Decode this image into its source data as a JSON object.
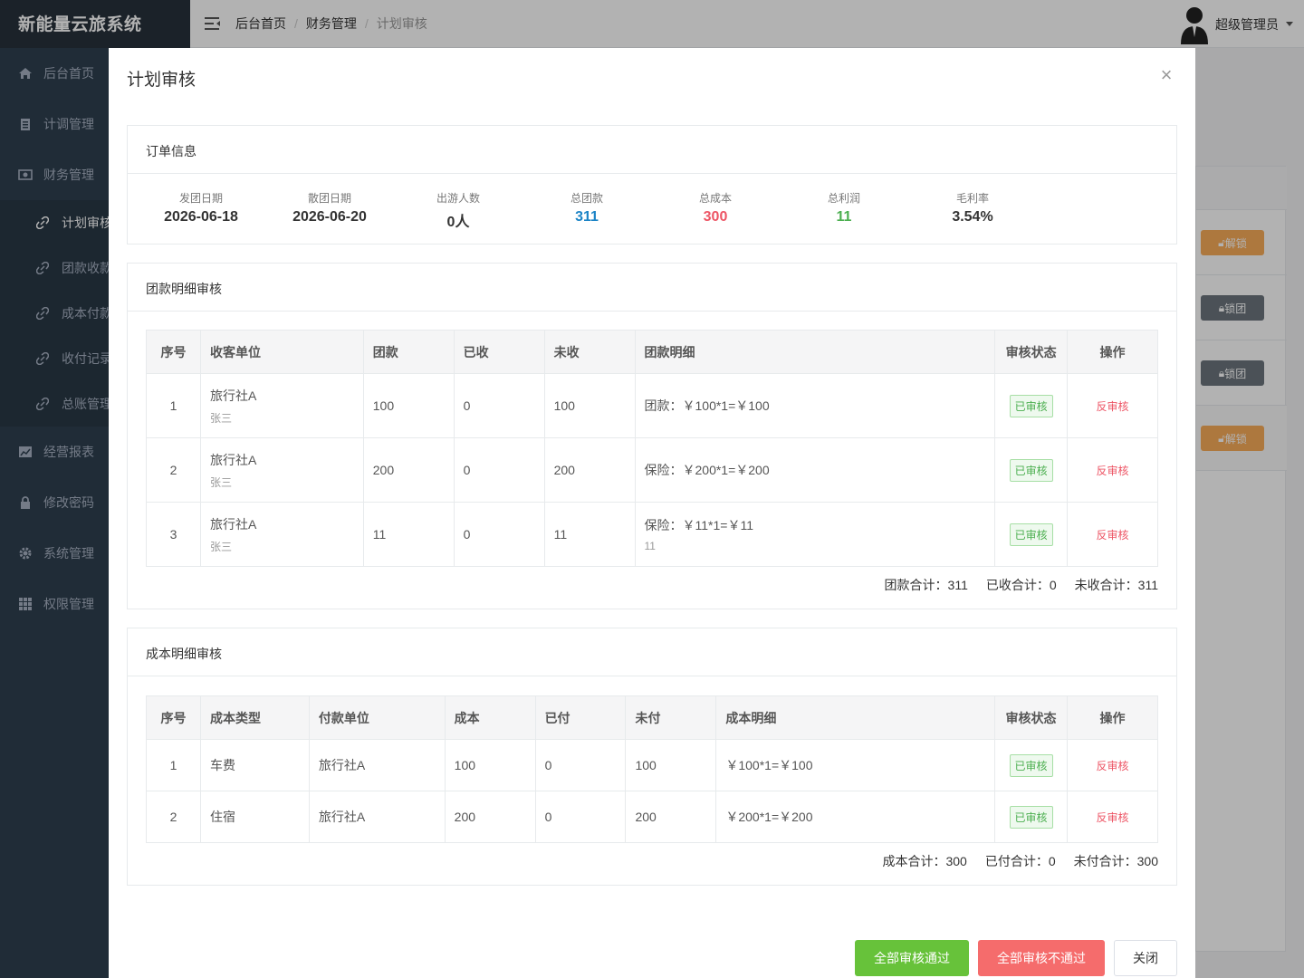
{
  "app": {
    "title": "新能量云旅系统"
  },
  "sidebar": {
    "items": [
      {
        "label": "后台首页",
        "icon": "home-icon"
      },
      {
        "label": "计调管理",
        "icon": "clipboard-icon"
      },
      {
        "label": "财务管理",
        "icon": "money-icon"
      },
      {
        "label": "经营报表",
        "icon": "chart-icon"
      },
      {
        "label": "修改密码",
        "icon": "lock-icon"
      },
      {
        "label": "系统管理",
        "icon": "gear-icon"
      },
      {
        "label": "权限管理",
        "icon": "grid-icon"
      }
    ],
    "sub_items": [
      {
        "label": "计划审核"
      },
      {
        "label": "团款收款"
      },
      {
        "label": "成本付款"
      },
      {
        "label": "收付记录"
      },
      {
        "label": "总账管理"
      }
    ]
  },
  "breadcrumb": {
    "home": "后台首页",
    "section": "财务管理",
    "current": "计划审核"
  },
  "user": {
    "name": "超级管理员"
  },
  "background": {
    "unlock": "解锁",
    "lock": "锁团"
  },
  "modal": {
    "title": "计划审核",
    "order": {
      "title": "订单信息",
      "stats": [
        {
          "label": "发团日期",
          "value": "2026-06-18"
        },
        {
          "label": "散团日期",
          "value": "2026-06-20"
        },
        {
          "label": "出游人数",
          "value": "0人"
        },
        {
          "label": "总团款",
          "value": "311"
        },
        {
          "label": "总成本",
          "value": "300"
        },
        {
          "label": "总利润",
          "value": "11"
        },
        {
          "label": "毛利率",
          "value": "3.54%"
        }
      ]
    },
    "income": {
      "title": "团款明细审核",
      "headers": [
        "序号",
        "收客单位",
        "团款",
        "已收",
        "未收",
        "团款明细",
        "审核状态",
        "操作"
      ],
      "rows": [
        {
          "no": "1",
          "unit": "旅行社A",
          "contact": "张三",
          "amount": "100",
          "received": "0",
          "unreceived": "100",
          "detail": "团款：￥100*1=￥100",
          "note": "",
          "status": "已审核",
          "action": "反审核"
        },
        {
          "no": "2",
          "unit": "旅行社A",
          "contact": "张三",
          "amount": "200",
          "received": "0",
          "unreceived": "200",
          "detail": "保险：￥200*1=￥200",
          "note": "",
          "status": "已审核",
          "action": "反审核"
        },
        {
          "no": "3",
          "unit": "旅行社A",
          "contact": "张三",
          "amount": "11",
          "received": "0",
          "unreceived": "11",
          "detail": "保险：￥11*1=￥11",
          "note": "11",
          "status": "已审核",
          "action": "反审核"
        }
      ],
      "totals": {
        "amount": "团款合计：311",
        "received": "已收合计：0",
        "unreceived": "未收合计：311"
      }
    },
    "cost": {
      "title": "成本明细审核",
      "headers": [
        "序号",
        "成本类型",
        "付款单位",
        "成本",
        "已付",
        "未付",
        "成本明细",
        "审核状态",
        "操作"
      ],
      "rows": [
        {
          "no": "1",
          "type": "车费",
          "unit": "旅行社A",
          "cost": "100",
          "paid": "0",
          "unpaid": "100",
          "detail": "￥100*1=￥100",
          "status": "已审核",
          "action": "反审核"
        },
        {
          "no": "2",
          "type": "住宿",
          "unit": "旅行社A",
          "cost": "200",
          "paid": "0",
          "unpaid": "200",
          "detail": "￥200*1=￥200",
          "status": "已审核",
          "action": "反审核"
        }
      ],
      "totals": {
        "cost": "成本合计：300",
        "paid": "已付合计：0",
        "unpaid": "未付合计：300"
      }
    },
    "buttons": {
      "pass_all": "全部审核通过",
      "fail_all": "全部审核不通过",
      "close": "关闭"
    }
  }
}
